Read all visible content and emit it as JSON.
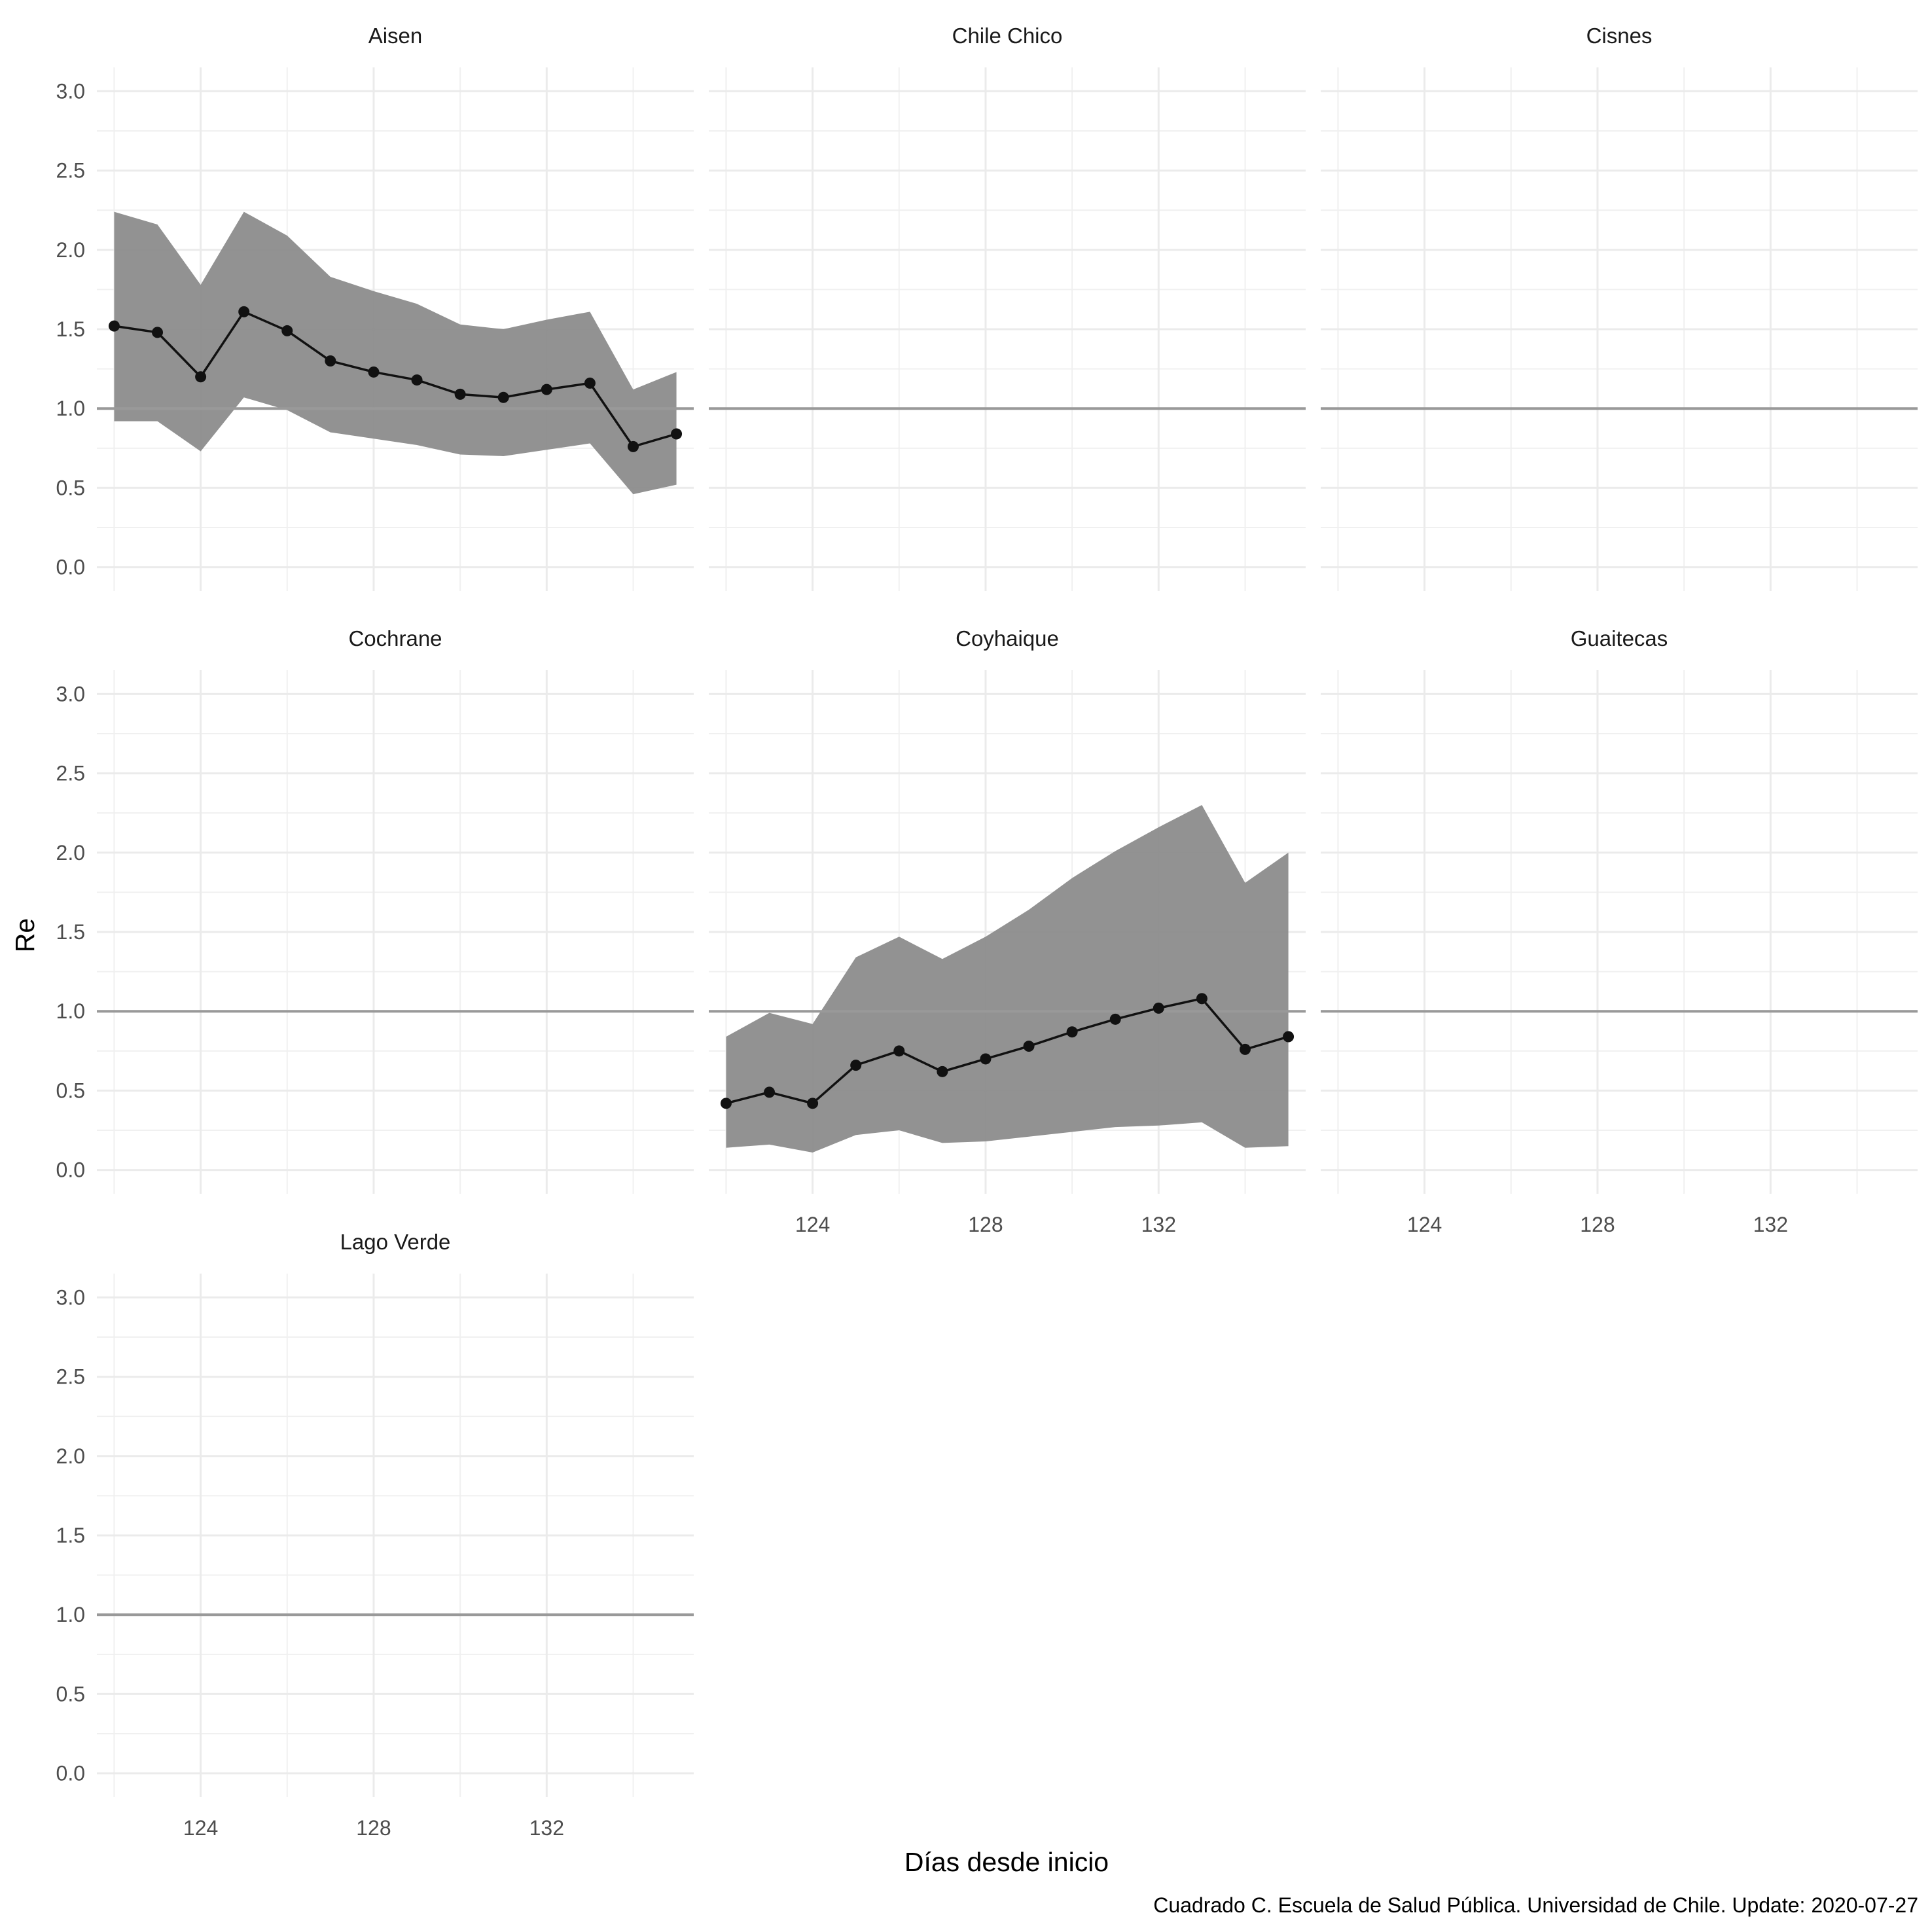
{
  "chart_data": {
    "type": "area",
    "xlabel": "Días desde inicio",
    "ylabel": "Re",
    "caption": "Cuadrado C. Escuela de Salud Pública. Universidad de Chile. Update: 2020-07-27",
    "xlim": [
      121.6,
      135.4
    ],
    "ylim": [
      -0.15,
      3.15
    ],
    "x_ticks": [
      124,
      128,
      132
    ],
    "y_ticks": [
      0,
      0.5,
      1,
      1.5,
      2,
      2.5,
      3
    ],
    "y_tick_labels": [
      "0.0",
      "0.5",
      "1.0",
      "1.5",
      "2.0",
      "2.5",
      "3.0"
    ],
    "x_tick_labels": [
      "124",
      "128",
      "132"
    ],
    "reference_line": 1.0,
    "grid": true,
    "colors": {
      "ribbon": "#8c8c8c",
      "line": "#111111",
      "refline": "#999999",
      "grid": "#ebebeb"
    },
    "panels": [
      {
        "name": "Aisen",
        "x": [
          122,
          123,
          124,
          125,
          126,
          127,
          128,
          129,
          130,
          131,
          132,
          133,
          134,
          135
        ],
        "re": [
          1.52,
          1.48,
          1.2,
          1.61,
          1.49,
          1.3,
          1.23,
          1.18,
          1.09,
          1.07,
          1.12,
          1.16,
          0.76,
          0.84
        ],
        "lower": [
          0.92,
          0.92,
          0.73,
          1.07,
          0.99,
          0.85,
          0.81,
          0.77,
          0.71,
          0.7,
          0.74,
          0.78,
          0.46,
          0.52
        ],
        "upper": [
          2.24,
          2.16,
          1.78,
          2.24,
          2.09,
          1.83,
          1.74,
          1.66,
          1.53,
          1.5,
          1.56,
          1.61,
          1.12,
          1.23
        ]
      },
      {
        "name": "Chile Chico",
        "x": [],
        "re": [],
        "lower": [],
        "upper": []
      },
      {
        "name": "Cisnes",
        "x": [],
        "re": [],
        "lower": [],
        "upper": []
      },
      {
        "name": "Cochrane",
        "x": [],
        "re": [],
        "lower": [],
        "upper": []
      },
      {
        "name": "Coyhaique",
        "x": [
          122,
          123,
          124,
          125,
          126,
          127,
          128,
          129,
          130,
          131,
          132,
          133,
          134,
          135
        ],
        "re": [
          0.42,
          0.49,
          0.42,
          0.66,
          0.75,
          0.62,
          0.7,
          0.78,
          0.87,
          0.95,
          1.02,
          1.08,
          0.76,
          0.84
        ],
        "lower": [
          0.14,
          0.16,
          0.11,
          0.22,
          0.25,
          0.17,
          0.18,
          0.21,
          0.24,
          0.27,
          0.28,
          0.3,
          0.14,
          0.15
        ],
        "upper": [
          0.84,
          0.99,
          0.92,
          1.34,
          1.47,
          1.33,
          1.47,
          1.64,
          1.84,
          2.01,
          2.16,
          2.3,
          1.81,
          2.0
        ]
      },
      {
        "name": "Guaitecas",
        "x": [],
        "re": [],
        "lower": [],
        "upper": []
      },
      {
        "name": "Lago Verde",
        "x": [],
        "re": [],
        "lower": [],
        "upper": []
      }
    ]
  }
}
